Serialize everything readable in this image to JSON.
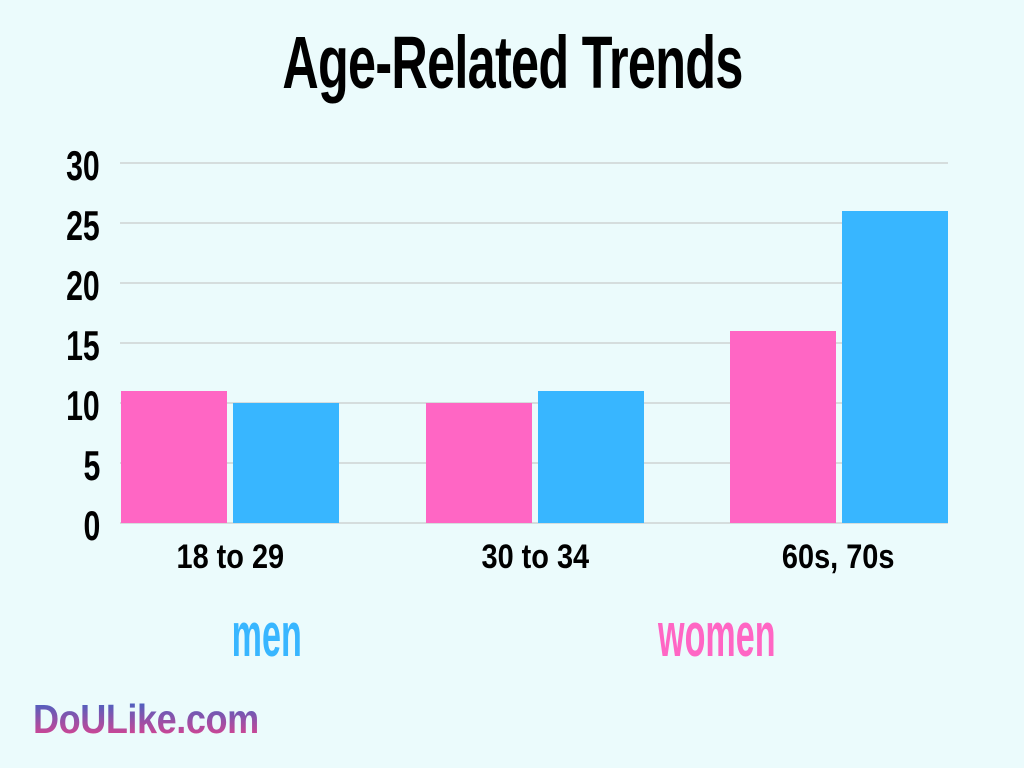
{
  "page": {
    "background": "#EBFBFC"
  },
  "title": "Age-Related Trends",
  "chart_data": {
    "type": "bar",
    "title": "Age-Related Trends",
    "categories": [
      "18 to 29",
      "30 to 34",
      "60s, 70s"
    ],
    "series": [
      {
        "name": "women",
        "color": "#FF66C4",
        "values": [
          11,
          10,
          16
        ]
      },
      {
        "name": "men",
        "color": "#38B6FF",
        "values": [
          10,
          11,
          26
        ]
      }
    ],
    "yticks": [
      30,
      25,
      20,
      15,
      10,
      5,
      0
    ],
    "ylim": [
      0,
      30
    ],
    "grid": true,
    "gridline_color": "#D5DDDD",
    "text_color": "#000000",
    "legend_position": "below",
    "legend": [
      {
        "label": "men",
        "color": "#38B6FF"
      },
      {
        "label": "women",
        "color": "#FF66C4"
      }
    ]
  },
  "footer": {
    "brand": "DoULike.com",
    "gradient_top": "#3E63C5",
    "gradient_bottom": "#E5418D"
  }
}
